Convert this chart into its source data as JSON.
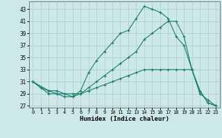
{
  "title": "",
  "xlabel": "Humidex (Indice chaleur)",
  "bg_color": "#cce8e8",
  "line_color": "#1a7a6e",
  "grid_color": "#aacccc",
  "ylim": [
    27,
    44
  ],
  "xlim": [
    -0.5,
    23.5
  ],
  "yticks": [
    27,
    29,
    31,
    33,
    35,
    37,
    39,
    41,
    43
  ],
  "xticks": [
    0,
    1,
    2,
    3,
    4,
    5,
    6,
    7,
    8,
    9,
    10,
    11,
    12,
    13,
    14,
    15,
    16,
    17,
    18,
    19,
    20,
    21,
    22,
    23
  ],
  "lines": [
    {
      "x": [
        0,
        1,
        2,
        3,
        4,
        5,
        6,
        7,
        8,
        9,
        10,
        11,
        12,
        13,
        14,
        15,
        16,
        17,
        18,
        19,
        20,
        21,
        22,
        23
      ],
      "y": [
        31,
        30,
        29,
        29,
        28.5,
        28.5,
        29,
        29.5,
        30,
        30.5,
        31,
        31.5,
        32,
        32.5,
        33,
        33,
        33,
        33,
        33,
        33,
        33,
        29,
        28,
        27
      ]
    },
    {
      "x": [
        0,
        1,
        2,
        3,
        4,
        5,
        6,
        7,
        8,
        9,
        10,
        11,
        12,
        13,
        14,
        15,
        16,
        17,
        18,
        19,
        20,
        21,
        22,
        23
      ],
      "y": [
        31,
        30,
        29.5,
        29.5,
        29,
        29,
        29,
        30,
        31,
        32,
        33,
        34,
        35,
        36,
        38,
        39,
        40,
        41,
        41,
        38.5,
        33,
        29.5,
        27.5,
        27
      ]
    },
    {
      "x": [
        0,
        2,
        3,
        4,
        5,
        6,
        7,
        8,
        9,
        10,
        11,
        12,
        13,
        14,
        15,
        16,
        17,
        18,
        19,
        20,
        21,
        22,
        23
      ],
      "y": [
        31,
        29.5,
        29,
        29,
        28.5,
        29.5,
        32.5,
        34.5,
        36,
        37.5,
        39,
        39.5,
        41.5,
        43.5,
        43,
        42.5,
        41.5,
        38.5,
        37,
        33,
        29.5,
        27.5,
        27
      ]
    }
  ]
}
